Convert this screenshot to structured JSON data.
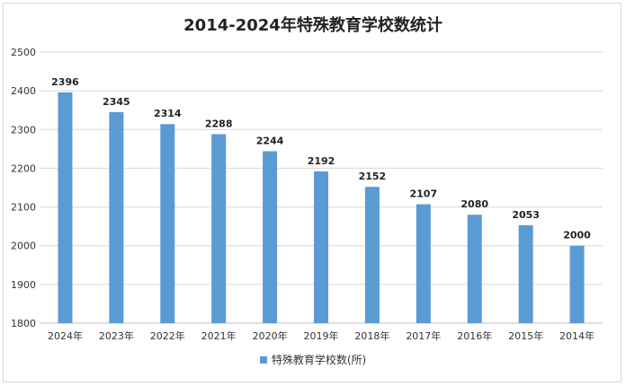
{
  "chart_data": {
    "type": "bar",
    "title": "2014-2024年特殊教育学校数统计",
    "categories": [
      "2024年",
      "2023年",
      "2022年",
      "2021年",
      "2020年",
      "2019年",
      "2018年",
      "2017年",
      "2016年",
      "2015年",
      "2014年"
    ],
    "series": [
      {
        "name": "特殊教育学校数(所)",
        "values": [
          2396,
          2345,
          2314,
          2288,
          2244,
          2192,
          2152,
          2107,
          2080,
          2053,
          2000
        ],
        "color": "#5b9bd5"
      }
    ],
    "ylim": [
      1800,
      2500
    ],
    "yticks": [
      1800,
      1900,
      2000,
      2100,
      2200,
      2300,
      2400,
      2500
    ],
    "grid": true,
    "legend": "bottom"
  }
}
